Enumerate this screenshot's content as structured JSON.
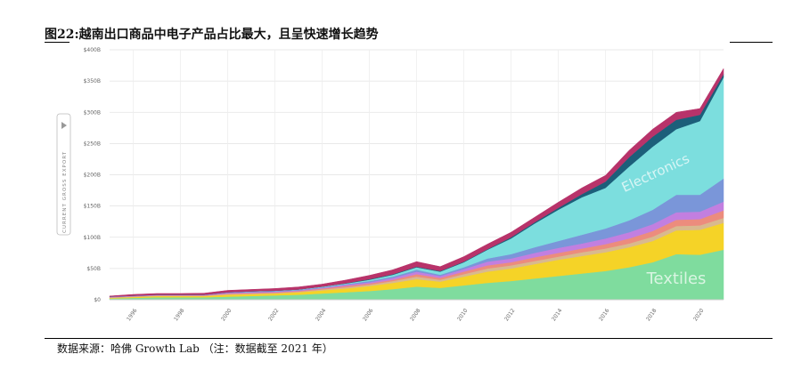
{
  "figure": {
    "title": "图22:越南出口商品中电子产品占比最大，且呈快速增长趋势",
    "source": "数据来源：哈佛 Growth Lab （注：数据截至 2021 年）"
  },
  "chart_data": {
    "type": "area",
    "stacked": true,
    "ylabel": "CURRENT GROSS EXPORT",
    "ylim": [
      0,
      400
    ],
    "y_unit": "B",
    "yticks": [
      "$0",
      "$50B",
      "$100B",
      "$150B",
      "$200B",
      "$250B",
      "$300B",
      "$350B",
      "$400B"
    ],
    "ytick_values": [
      0,
      50,
      100,
      150,
      200,
      250,
      300,
      350,
      400
    ],
    "xlim": [
      1995,
      2021
    ],
    "xticks": [
      1996,
      1998,
      2000,
      2002,
      2004,
      2006,
      2008,
      2010,
      2012,
      2014,
      2016,
      2018,
      2020
    ],
    "grid": true,
    "x": [
      1995,
      1996,
      1997,
      1998,
      1999,
      2000,
      2001,
      2002,
      2003,
      2004,
      2005,
      2006,
      2007,
      2008,
      2009,
      2010,
      2011,
      2012,
      2013,
      2014,
      2015,
      2016,
      2017,
      2018,
      2019,
      2020,
      2021
    ],
    "area_labels": [
      {
        "text": "Textiles",
        "series": "textiles"
      },
      {
        "text": "Electronics",
        "series": "electronics"
      }
    ],
    "series": [
      {
        "key": "textiles",
        "color": "#7fdc9e",
        "values": [
          2,
          3,
          4,
          4,
          4,
          5,
          6,
          7,
          8,
          10,
          12,
          14,
          17,
          21,
          19,
          23,
          27,
          30,
          34,
          38,
          42,
          46,
          52,
          60,
          73,
          72,
          80
        ]
      },
      {
        "key": "yellow",
        "color": "#f5d327",
        "values": [
          1,
          1.5,
          2,
          2,
          2,
          3,
          3,
          3,
          4,
          5,
          6,
          8,
          10,
          12,
          10,
          14,
          18,
          20,
          23,
          26,
          28,
          30,
          32,
          34,
          38,
          40,
          43
        ]
      },
      {
        "key": "tan",
        "color": "#d9b98e",
        "values": [
          0.5,
          0.5,
          0.5,
          0.5,
          0.5,
          1,
          1,
          1,
          1,
          1.5,
          2,
          2,
          3,
          4,
          3,
          4,
          5,
          5,
          5,
          5,
          6,
          6,
          6,
          7,
          7,
          7,
          8
        ]
      },
      {
        "key": "coral",
        "color": "#ec8c7d",
        "values": [
          0.5,
          0.5,
          0.5,
          0.5,
          0.5,
          1,
          1,
          1,
          1,
          1.5,
          2,
          2,
          2,
          4,
          3,
          4,
          5,
          5,
          6,
          6,
          6,
          7,
          8,
          9,
          10,
          10,
          12
        ]
      },
      {
        "key": "violet",
        "color": "#c27fe0",
        "values": [
          0.5,
          0.5,
          0.5,
          0.5,
          0.5,
          1,
          1,
          1,
          1,
          1,
          2,
          2,
          3,
          4,
          3,
          4,
          6,
          6,
          7,
          8,
          8,
          9,
          10,
          11,
          12,
          12,
          14
        ]
      },
      {
        "key": "periwinkle",
        "color": "#7a96d9",
        "values": [
          0.5,
          0.5,
          0.5,
          0.5,
          0.5,
          1,
          1,
          1,
          1,
          1,
          1,
          2,
          2,
          3,
          2,
          3,
          5,
          7,
          9,
          11,
          14,
          16,
          19,
          23,
          28,
          27,
          37
        ]
      },
      {
        "key": "electronics",
        "color": "#7cdede",
        "values": [
          0,
          0,
          0,
          0,
          0,
          0,
          0.5,
          0.5,
          0.5,
          1,
          1,
          2,
          3,
          4,
          5,
          8,
          14,
          25,
          38,
          50,
          60,
          65,
          86,
          101,
          105,
          118,
          162
        ]
      },
      {
        "key": "darkteal",
        "color": "#1c5f7a",
        "values": [
          0,
          0,
          0,
          0,
          0,
          0,
          0,
          0,
          0,
          0,
          0.5,
          1,
          1,
          1,
          1,
          1,
          1,
          2,
          2,
          3,
          5,
          10,
          15,
          16,
          15,
          10,
          5
        ]
      },
      {
        "key": "crimson",
        "color": "#b8336a",
        "values": [
          1,
          2,
          2,
          2,
          2.5,
          3,
          3,
          3.5,
          4,
          4,
          5,
          6,
          7,
          8,
          7,
          8,
          8,
          8,
          8,
          9,
          10,
          10,
          11,
          12,
          12,
          10,
          9
        ]
      }
    ]
  }
}
